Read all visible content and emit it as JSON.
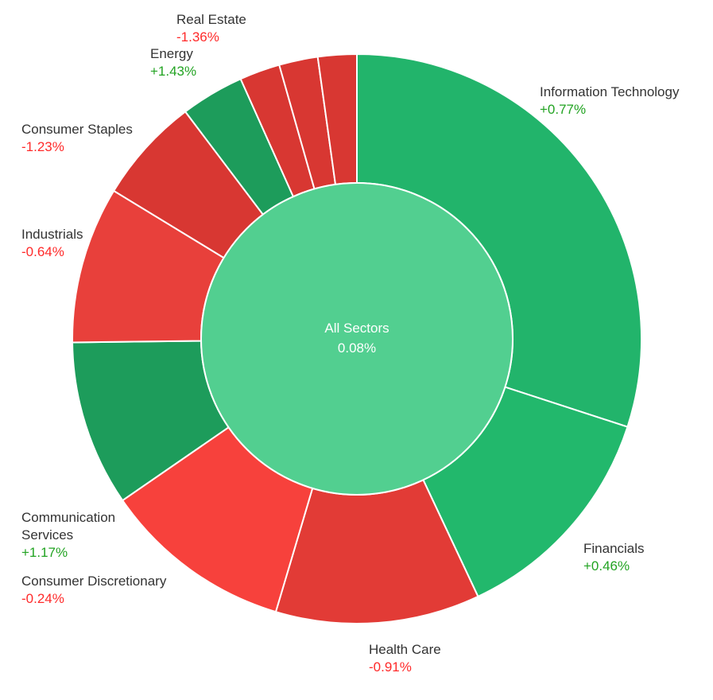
{
  "chart_data": {
    "type": "pie",
    "center": {
      "label": "All Sectors",
      "value": "0.08%",
      "color": "#52cf90"
    },
    "colors": {
      "positive_text": "#22a322",
      "negative_text": "#ff2a2a"
    },
    "segments": [
      {
        "name": "Information Technology",
        "change": "+0.77%",
        "weight": 30.0,
        "color": "#22b46b",
        "label": [
          "Information Technology"
        ],
        "labeled": true
      },
      {
        "name": "Financials",
        "change": "+0.46%",
        "weight": 13.0,
        "color": "#22b86c",
        "label": [
          "Financials"
        ],
        "labeled": true
      },
      {
        "name": "Health Care",
        "change": "-0.91%",
        "weight": 11.6,
        "color": "#e23b36",
        "label": [
          "Health Care"
        ],
        "labeled": true
      },
      {
        "name": "Consumer Discretionary",
        "change": "-0.24%",
        "weight": 10.8,
        "color": "#f7413c",
        "label": [
          "Consumer Discretionary"
        ],
        "labeled": true
      },
      {
        "name": "Communication Services",
        "change": "+1.17%",
        "weight": 9.4,
        "color": "#1d9c5b",
        "label": [
          "Communication",
          "Services"
        ],
        "labeled": true
      },
      {
        "name": "Industrials",
        "change": "-0.64%",
        "weight": 8.9,
        "color": "#e8403b",
        "label": [
          "Industrials"
        ],
        "labeled": true
      },
      {
        "name": "Consumer Staples",
        "change": "-1.23%",
        "weight": 6.0,
        "color": "#d83732",
        "label": [
          "Consumer Staples"
        ],
        "labeled": true
      },
      {
        "name": "Energy",
        "change": "+1.43%",
        "weight": 3.6,
        "color": "#1d9c5b",
        "label": [
          "Energy"
        ],
        "labeled": true
      },
      {
        "name": "",
        "change": "",
        "weight": 2.3,
        "color": "#d83732",
        "label": [],
        "labeled": false
      },
      {
        "name": "",
        "change": "",
        "weight": 2.2,
        "color": "#d83732",
        "label": [],
        "labeled": false
      },
      {
        "name": "Real Estate",
        "change": "-1.36%",
        "weight": 2.2,
        "color": "#d83732",
        "label": [
          "Real Estate"
        ],
        "labeled": true
      }
    ]
  }
}
